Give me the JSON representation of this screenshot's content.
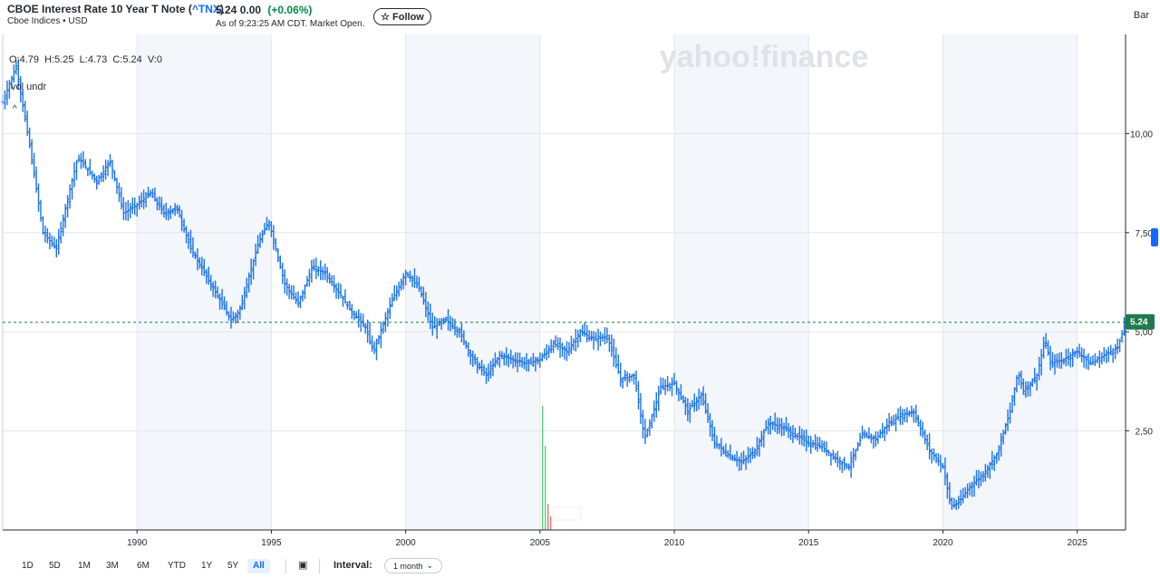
{
  "header": {
    "title": "CBOE Interest Rate 10 Year T Note (",
    "symbol": "^TNX",
    "title_close": ")",
    "subtitle": "Cboe Indices • USD",
    "price": "5.24",
    "change": "0.00",
    "change_pct": "(+0.06%)",
    "as_of": "As of 9:23:25 AM CDT. Market Open.",
    "follow_label": "Follow",
    "chart_type": "Bar"
  },
  "watermark": "yahoo!finance",
  "ohlc": "O:4.79  H:5.25  L:4.73  C:5.24  V:0",
  "indicator_label": "vol undr",
  "last_price_tag": "5.24",
  "footer": {
    "ranges": [
      "1D",
      "5D",
      "1M",
      "3M",
      "6M",
      "YTD",
      "1Y",
      "5Y",
      "All"
    ],
    "active_range": "All",
    "interval_label": "Interval:",
    "interval_value": "1 month"
  },
  "colors": {
    "series": "#1a73e8",
    "accent": "#0f69ff",
    "positive": "#008a45",
    "price_tag": "#1e7b4d",
    "band": "#f3f6fa"
  },
  "chart_data": {
    "type": "bar",
    "title": "",
    "x_ticks": [
      "1990",
      "1995",
      "2000",
      "2005",
      "2010",
      "2015",
      "2020",
      "2025"
    ],
    "y_ticks": [
      "2,50",
      "5,00",
      "7,50",
      "10,00"
    ],
    "ylim": [
      0,
      12.5
    ],
    "xlim": [
      1985.0,
      2026.8
    ],
    "current_value": 5.24,
    "series": [
      {
        "x": [
          1985.0,
          1985.5,
          1986.0,
          1986.5,
          1987.0,
          1987.5,
          1987.8,
          1988.5,
          1989.0,
          1989.5,
          1990.0,
          1990.5,
          1991.0,
          1991.5,
          1992.0,
          1992.5,
          1993.0,
          1993.5,
          1993.8,
          1994.5,
          1994.9,
          1995.5,
          1996.0,
          1996.5,
          1997.0,
          1997.5,
          1998.0,
          1998.5,
          1998.8,
          1999.5,
          2000.0,
          2000.5,
          2001.0,
          2001.5,
          2002.0,
          2002.5,
          2003.0,
          2003.5,
          2004.0,
          2004.5,
          2005.0,
          2005.5,
          2006.0,
          2006.5,
          2007.0,
          2007.5,
          2008.0,
          2008.5,
          2008.9,
          2009.5,
          2010.0,
          2010.5,
          2011.0,
          2011.5,
          2012.0,
          2012.5,
          2013.0,
          2013.5,
          2014.0,
          2014.5,
          2015.0,
          2015.5,
          2016.0,
          2016.5,
          2017.0,
          2017.5,
          2018.0,
          2018.5,
          2018.9,
          2019.5,
          2020.0,
          2020.3,
          2020.6,
          2021.0,
          2021.5,
          2022.0,
          2022.5,
          2022.8,
          2023.0,
          2023.5,
          2023.8,
          2024.0,
          2024.5,
          2025.0,
          2025.5,
          2026.0,
          2026.5,
          2026.8
        ],
        "values": [
          10.8,
          11.7,
          9.7,
          7.5,
          7.1,
          8.6,
          9.4,
          8.8,
          9.3,
          8.0,
          8.2,
          8.5,
          8.0,
          8.1,
          7.1,
          6.5,
          5.9,
          5.3,
          5.5,
          7.2,
          7.8,
          6.2,
          5.7,
          6.6,
          6.5,
          6.0,
          5.5,
          5.1,
          4.5,
          5.8,
          6.5,
          6.1,
          5.1,
          5.3,
          5.0,
          4.3,
          3.9,
          4.4,
          4.3,
          4.2,
          4.3,
          4.7,
          4.5,
          5.0,
          4.8,
          4.9,
          3.8,
          3.9,
          2.3,
          3.6,
          3.7,
          3.0,
          3.4,
          2.2,
          1.9,
          1.7,
          2.0,
          2.7,
          2.6,
          2.4,
          2.2,
          2.1,
          1.8,
          1.6,
          2.4,
          2.3,
          2.7,
          2.9,
          3.0,
          2.0,
          1.6,
          0.6,
          0.7,
          1.1,
          1.4,
          1.9,
          3.0,
          4.0,
          3.5,
          3.9,
          4.8,
          4.2,
          4.3,
          4.5,
          4.2,
          4.4,
          4.6,
          5.24
        ]
      }
    ],
    "bands": [
      [
        1990,
        1995
      ],
      [
        2000,
        2005
      ],
      [
        2010,
        2015
      ],
      [
        2020,
        2025
      ]
    ]
  }
}
